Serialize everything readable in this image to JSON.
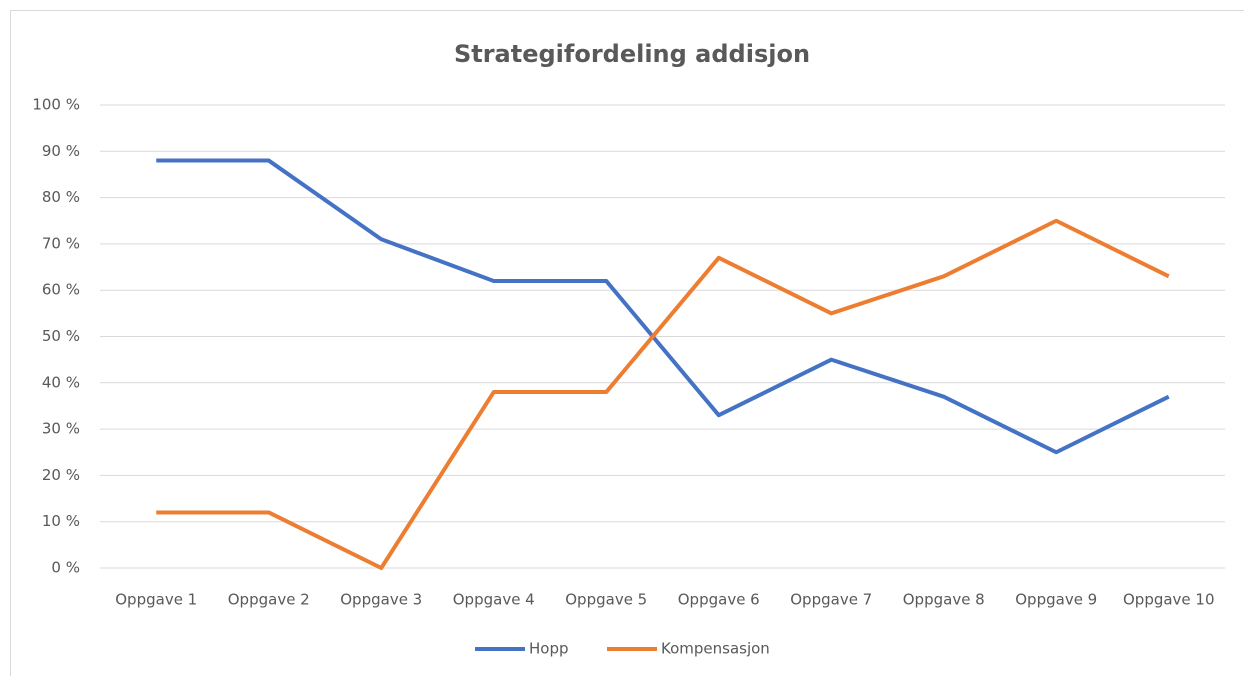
{
  "chart_data": {
    "type": "line",
    "title": "Strategifordeling addisjon",
    "categories": [
      "Oppgave 1",
      "Oppgave 2",
      "Oppgave 3",
      "Oppgave 4",
      "Oppgave 5",
      "Oppgave 6",
      "Oppgave 7",
      "Oppgave 8",
      "Oppgave 9",
      "Oppgave 10"
    ],
    "series": [
      {
        "name": "Hopp",
        "color": "#4472c4",
        "values": [
          88,
          88,
          71,
          62,
          62,
          33,
          45,
          37,
          25,
          37
        ]
      },
      {
        "name": "Kompensasjon",
        "color": "#ed7d31",
        "values": [
          12,
          12,
          0,
          38,
          38,
          67,
          55,
          63,
          75,
          63
        ]
      }
    ],
    "ylim": [
      0,
      100
    ],
    "yticks": [
      {
        "value": 0,
        "label": "0 %"
      },
      {
        "value": 10,
        "label": "10 %"
      },
      {
        "value": 20,
        "label": "20 %"
      },
      {
        "value": 30,
        "label": "30 %"
      },
      {
        "value": 40,
        "label": "40 %"
      },
      {
        "value": 50,
        "label": "50 %"
      },
      {
        "value": 60,
        "label": "60 %"
      },
      {
        "value": 70,
        "label": "70 %"
      },
      {
        "value": 80,
        "label": "80 %"
      },
      {
        "value": 90,
        "label": "90 %"
      },
      {
        "value": 100,
        "label": "100 %"
      }
    ],
    "grid": true,
    "legend": "bottom"
  }
}
